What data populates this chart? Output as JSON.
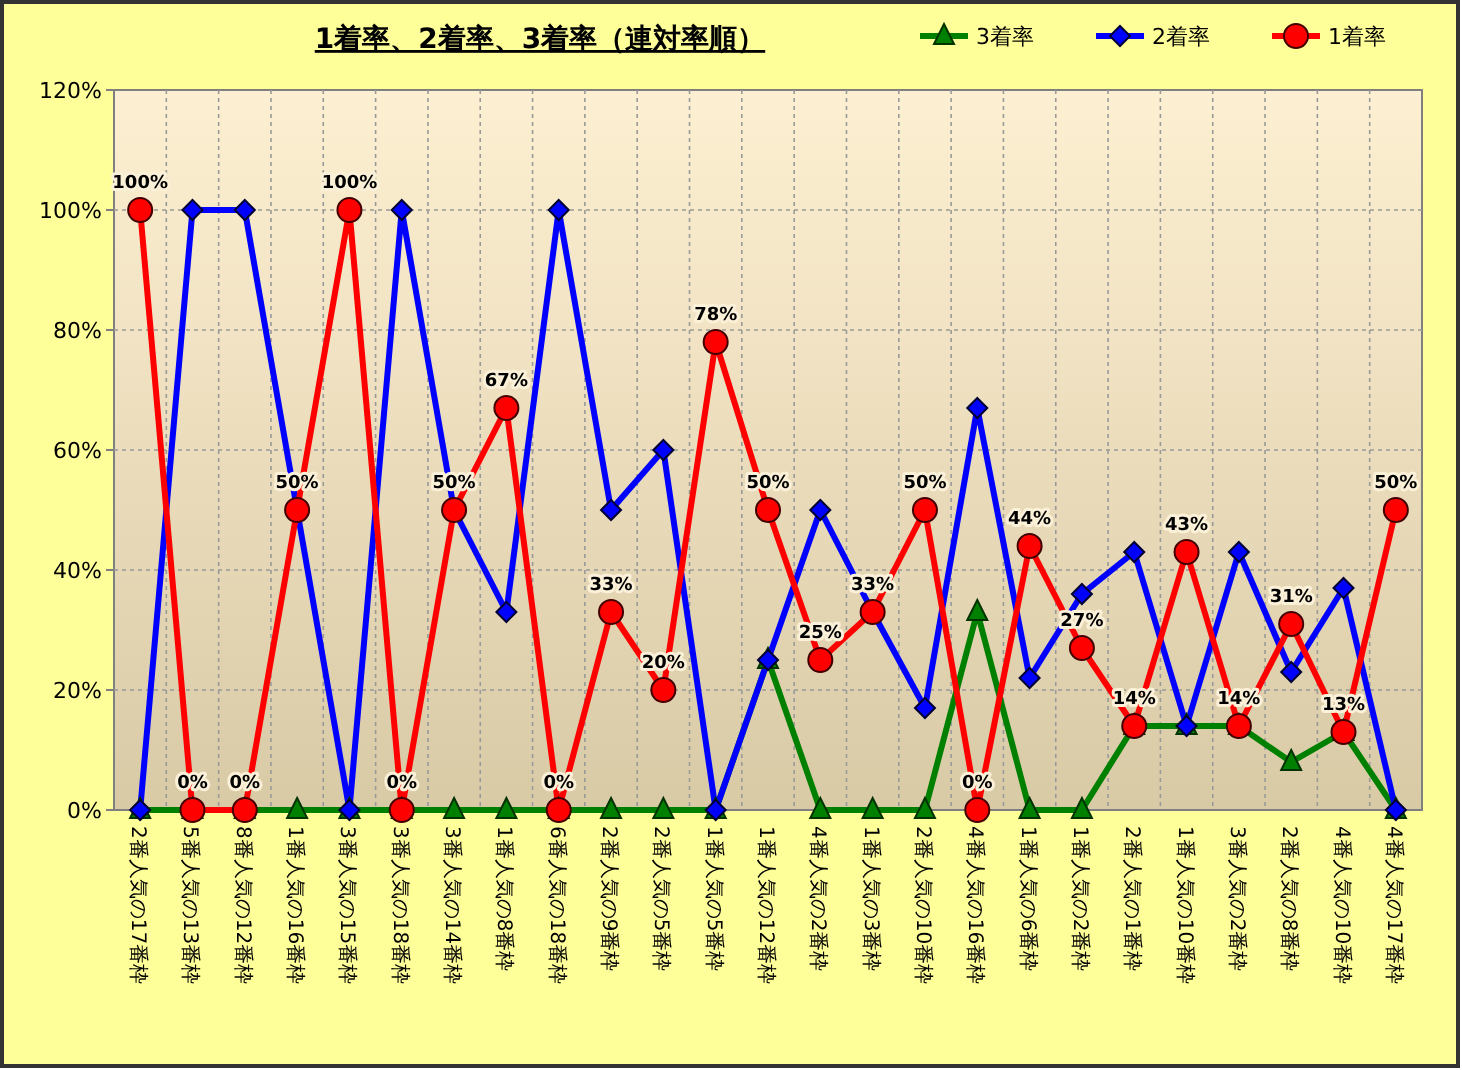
{
  "chart_data": {
    "type": "line",
    "title": "1着率、2着率、3着率（連対率順）",
    "categories": [
      "2番人気の17番枠",
      "5番人気の13番枠",
      "8番人気の12番枠",
      "1番人気の16番枠",
      "3番人気の15番枠",
      "3番人気の18番枠",
      "3番人気の14番枠",
      "1番人気の8番枠",
      "6番人気の18番枠",
      "2番人気の9番枠",
      "2番人気の5番枠",
      "1番人気の5番枠",
      "1番人気の12番枠",
      "4番人気の2番枠",
      "1番人気の3番枠",
      "2番人気の10番枠",
      "4番人気の16番枠",
      "1番人気の6番枠",
      "1番人気の2番枠",
      "2番人気の1番枠",
      "1番人気の10番枠",
      "3番人気の2番枠",
      "2番人気の8番枠",
      "4番人気の10番枠",
      "4番人気の17番枠"
    ],
    "series": [
      {
        "name": "3着率",
        "color": "#008000",
        "marker": "triangle",
        "values": [
          0,
          0,
          0,
          0,
          0,
          0,
          0,
          0,
          0,
          0,
          0,
          0,
          25,
          0,
          0,
          0,
          33,
          0,
          0,
          14,
          14,
          14,
          8,
          13,
          0
        ]
      },
      {
        "name": "2着率",
        "color": "#0000ff",
        "marker": "diamond",
        "values": [
          0,
          100,
          100,
          50,
          0,
          100,
          50,
          33,
          100,
          50,
          60,
          0,
          25,
          50,
          33,
          17,
          67,
          22,
          36,
          43,
          14,
          43,
          23,
          37,
          0
        ]
      },
      {
        "name": "1着率",
        "color": "#ff0000",
        "marker": "circle",
        "values": [
          100,
          0,
          0,
          50,
          100,
          0,
          50,
          67,
          0,
          33,
          20,
          78,
          50,
          25,
          33,
          50,
          0,
          44,
          27,
          14,
          43,
          14,
          31,
          13,
          50
        ],
        "value_labels": [
          "100%",
          "0%",
          "0%",
          "50%",
          "100%",
          "0%",
          "50%",
          "67%",
          "0%",
          "33%",
          "20%",
          "78%",
          "50%",
          "25%",
          "33%",
          "50%",
          "0%",
          "44%",
          "27%",
          "14%",
          "43%",
          "14%",
          "31%",
          "13%",
          "50%"
        ]
      }
    ],
    "ylim": [
      0,
      120
    ],
    "yticks": [
      {
        "value": 0,
        "label": "0%"
      },
      {
        "value": 20,
        "label": "20%"
      },
      {
        "value": 40,
        "label": "40%"
      },
      {
        "value": 60,
        "label": "60%"
      },
      {
        "value": 80,
        "label": "80%"
      },
      {
        "value": 100,
        "label": "100%"
      },
      {
        "value": 120,
        "label": "120%"
      }
    ],
    "grid": true,
    "legend": "top right",
    "line_style": "solid"
  }
}
